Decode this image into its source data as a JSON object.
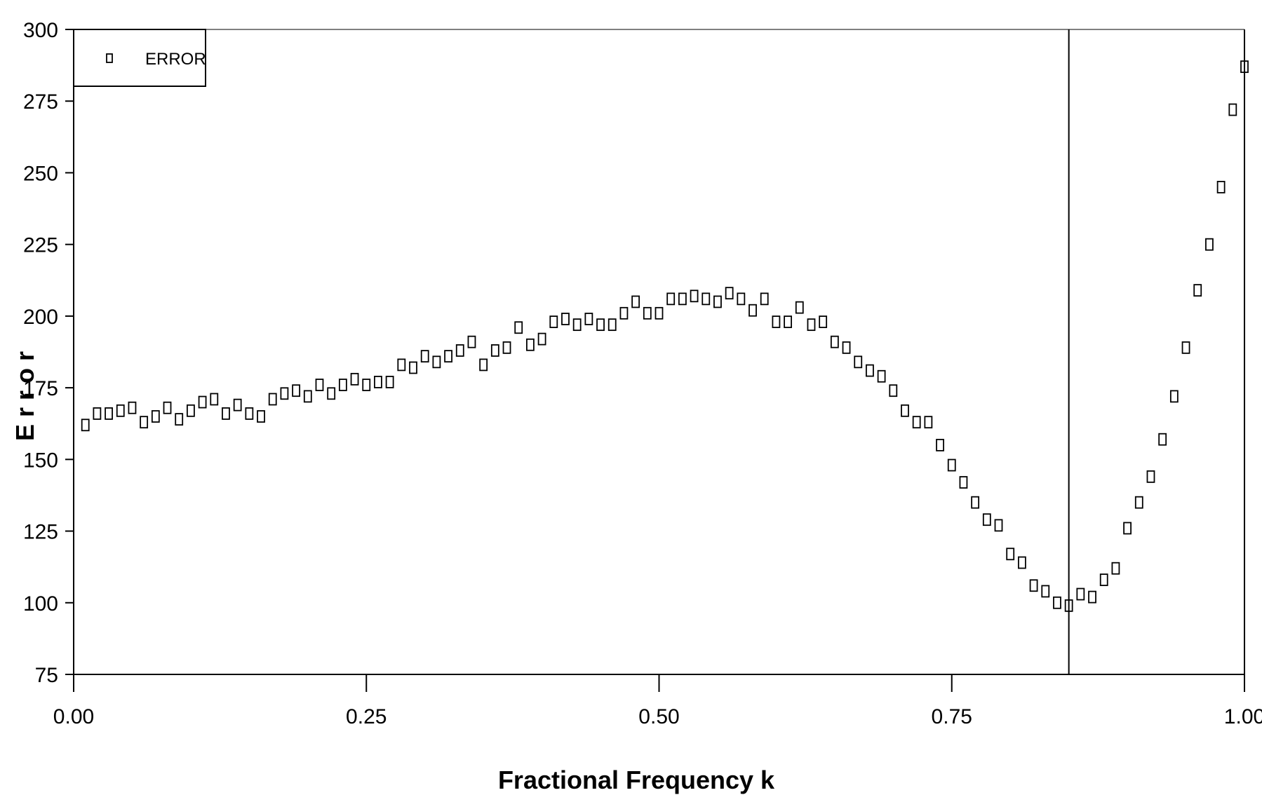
{
  "chart_data": {
    "type": "scatter",
    "title": "",
    "xlabel": "Fractional Frequency k",
    "ylabel": "E r r o r",
    "xlim": [
      0,
      1
    ],
    "ylim": [
      75,
      300
    ],
    "xticks": [
      0,
      0.25,
      0.5,
      0.75,
      1.0
    ],
    "xtick_labels": [
      "0.00",
      "0.25",
      "0.50",
      "0.75",
      "1.00"
    ],
    "yticks": [
      75,
      100,
      125,
      150,
      175,
      200,
      225,
      250,
      275,
      300
    ],
    "ytick_labels": [
      "75",
      "100",
      "125",
      "150",
      "175",
      "200",
      "225",
      "250",
      "275",
      "300"
    ],
    "grid": false,
    "legend": {
      "position": "top-left",
      "entries": [
        "ERROR"
      ]
    },
    "vertical_line_x": 0.85,
    "series": [
      {
        "name": "ERROR",
        "marker": "hollow-rectangle",
        "x": [
          0.01,
          0.02,
          0.03,
          0.04,
          0.05,
          0.06,
          0.07,
          0.08,
          0.09,
          0.1,
          0.11,
          0.12,
          0.13,
          0.14,
          0.15,
          0.16,
          0.17,
          0.18,
          0.19,
          0.2,
          0.21,
          0.22,
          0.23,
          0.24,
          0.25,
          0.26,
          0.27,
          0.28,
          0.29,
          0.3,
          0.31,
          0.32,
          0.33,
          0.34,
          0.35,
          0.36,
          0.37,
          0.38,
          0.39,
          0.4,
          0.41,
          0.42,
          0.43,
          0.44,
          0.45,
          0.46,
          0.47,
          0.48,
          0.49,
          0.5,
          0.51,
          0.52,
          0.53,
          0.54,
          0.55,
          0.56,
          0.57,
          0.58,
          0.59,
          0.6,
          0.61,
          0.62,
          0.63,
          0.64,
          0.65,
          0.66,
          0.67,
          0.68,
          0.69,
          0.7,
          0.71,
          0.72,
          0.73,
          0.74,
          0.75,
          0.76,
          0.77,
          0.78,
          0.79,
          0.8,
          0.81,
          0.82,
          0.83,
          0.84,
          0.85,
          0.86,
          0.87,
          0.88,
          0.89,
          0.9,
          0.91,
          0.92,
          0.93,
          0.94,
          0.95,
          0.96,
          0.97,
          0.98,
          0.99,
          1.0
        ],
        "y": [
          162,
          166,
          166,
          167,
          168,
          163,
          165,
          168,
          164,
          167,
          170,
          171,
          166,
          169,
          166,
          165,
          171,
          173,
          174,
          172,
          176,
          173,
          176,
          178,
          176,
          177,
          177,
          183,
          182,
          186,
          184,
          186,
          188,
          191,
          183,
          188,
          189,
          196,
          190,
          192,
          198,
          199,
          197,
          199,
          197,
          197,
          201,
          205,
          201,
          201,
          206,
          206,
          207,
          206,
          205,
          208,
          206,
          202,
          206,
          198,
          198,
          203,
          197,
          198,
          191,
          189,
          184,
          181,
          179,
          174,
          167,
          163,
          163,
          155,
          148,
          142,
          135,
          129,
          127,
          117,
          114,
          106,
          104,
          100,
          99,
          103,
          102,
          108,
          112,
          126,
          135,
          144,
          157,
          172,
          189,
          209,
          225,
          245,
          272,
          287
        ]
      }
    ]
  }
}
